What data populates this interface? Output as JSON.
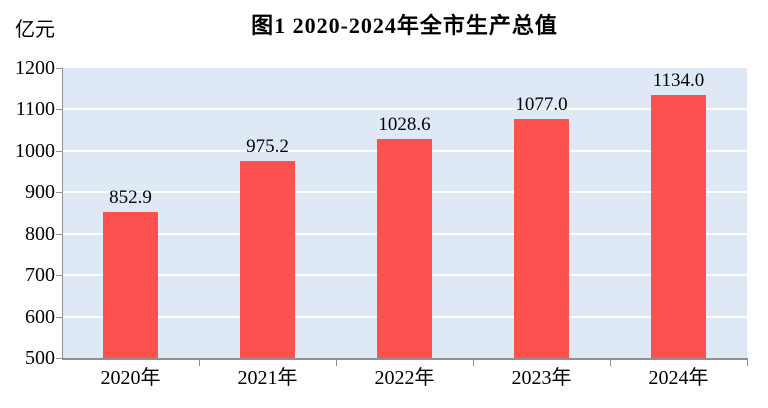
{
  "chart_data": {
    "type": "bar",
    "title": "图1  2020-2024年全市生产总值",
    "unit_label": "亿元",
    "ylabel": "亿元",
    "xlabel": "",
    "categories": [
      "2020年",
      "2021年",
      "2022年",
      "2023年",
      "2024年"
    ],
    "values": [
      852.9,
      975.2,
      1028.6,
      1077.0,
      1134.0
    ],
    "value_labels": [
      "852.9",
      "975.2",
      "1028.6",
      "1077.0",
      "1134.0"
    ],
    "ylim": [
      500,
      1200
    ],
    "ytick_interval": 100,
    "yticks": [
      "1200",
      "1100",
      "1000",
      "900",
      "800",
      "700",
      "600",
      "500"
    ],
    "grid": true,
    "legend": false,
    "colors": {
      "bar": "#FB514F",
      "plot_background": "#DEE9F5",
      "gridline": "#FFFFFF",
      "axis": "#909090",
      "text": "#000000",
      "page_background": "#FFFFFF"
    }
  }
}
